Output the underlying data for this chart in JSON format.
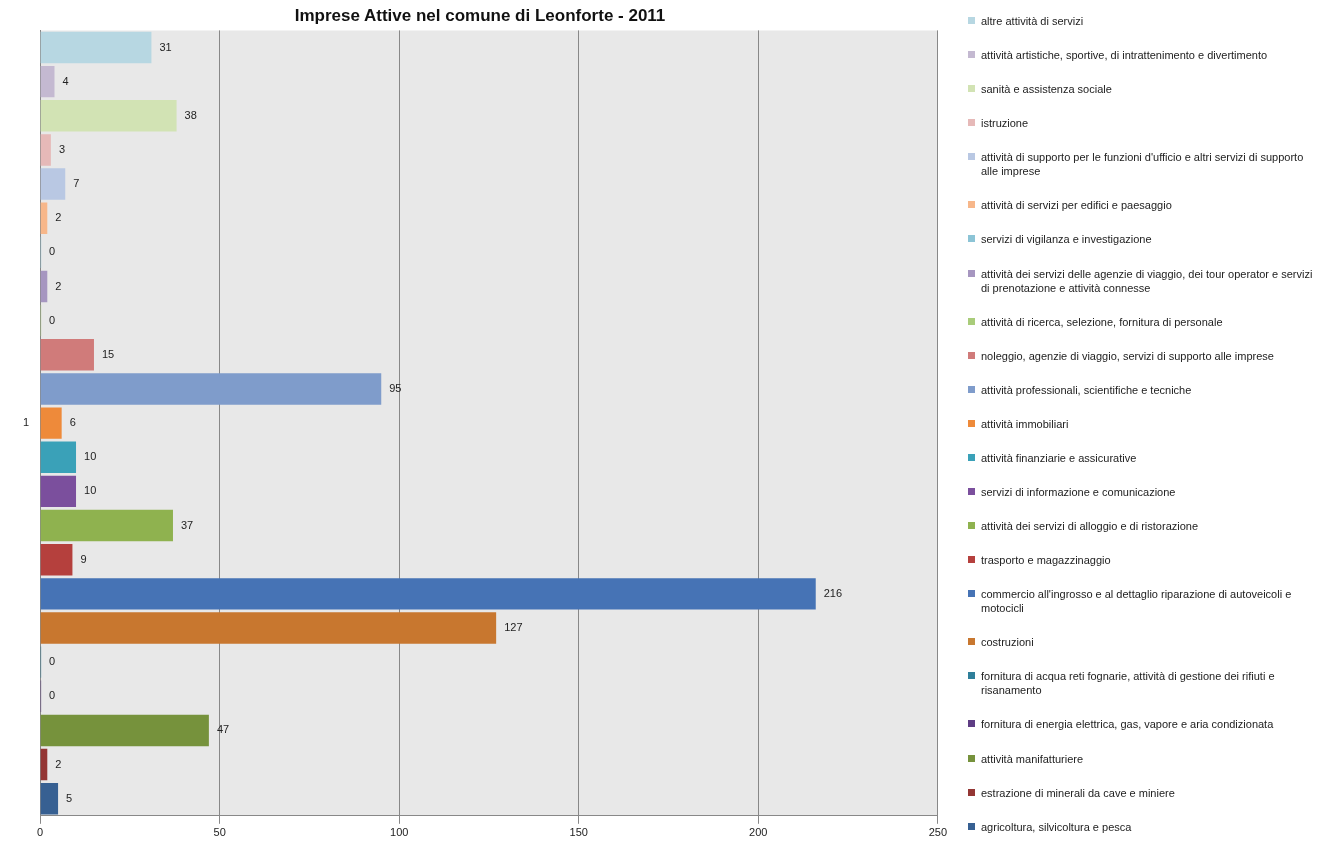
{
  "chart_data": {
    "type": "bar",
    "orientation": "horizontal",
    "title": "Imprese Attive nel comune di Leonforte - 2011",
    "categories": [
      "1"
    ],
    "xlim": [
      0,
      250
    ],
    "xticks": [
      0,
      50,
      100,
      150,
      200,
      250
    ],
    "grid": "x",
    "legend": "right",
    "data_labels": true,
    "series": [
      {
        "name": "altre attività di servizi",
        "color": "#b7d7e2",
        "values": [
          31
        ]
      },
      {
        "name": "attività artistiche, sportive, di intrattenimento e divertimento",
        "color": "#c4b9d1",
        "values": [
          4
        ]
      },
      {
        "name": "sanità e assistenza sociale",
        "color": "#d2e3b4",
        "values": [
          38
        ]
      },
      {
        "name": "istruzione",
        "color": "#e6b9b8",
        "values": [
          3
        ]
      },
      {
        "name": "attività di supporto per le funzioni d'ufficio e altri servizi di supporto alle imprese",
        "color": "#b9c8e3",
        "values": [
          7
        ]
      },
      {
        "name": "attività di servizi per edifici e paesaggio",
        "color": "#f7b78a",
        "values": [
          2
        ]
      },
      {
        "name": "servizi di vigilanza e investigazione",
        "color": "#8cc4d6",
        "values": [
          0
        ]
      },
      {
        "name": "attività dei servizi delle agenzie di viaggio, dei tour operator e servizi di prenotazione e attività connesse",
        "color": "#a696c0",
        "values": [
          2
        ]
      },
      {
        "name": "attività di ricerca, selezione, fornitura di personale",
        "color": "#a9cc7a",
        "values": [
          0
        ]
      },
      {
        "name": "noleggio, agenzie di viaggio, servizi di supporto alle imprese",
        "color": "#d07b7a",
        "values": [
          15
        ]
      },
      {
        "name": "attività professionali, scientifiche e tecniche",
        "color": "#7f9ccb",
        "values": [
          95
        ]
      },
      {
        "name": "attività immobiliari",
        "color": "#ee8a3a",
        "values": [
          6
        ]
      },
      {
        "name": "attività finanziarie e assicurative",
        "color": "#3aa1b8",
        "values": [
          10
        ]
      },
      {
        "name": "servizi di informazione e comunicazione",
        "color": "#7b4f9d",
        "values": [
          10
        ]
      },
      {
        "name": "attività dei servizi di alloggio e di ristorazione",
        "color": "#8fb24f",
        "values": [
          37
        ]
      },
      {
        "name": "trasporto e magazzinaggio",
        "color": "#b5403d",
        "values": [
          9
        ]
      },
      {
        "name": "commercio all'ingrosso e al dettaglio riparazione di autoveicoli e motocicli",
        "color": "#4673b5",
        "values": [
          216
        ]
      },
      {
        "name": "costruzioni",
        "color": "#c8772f",
        "values": [
          127
        ]
      },
      {
        "name": "fornitura di acqua reti fognarie, attività di gestione dei rifiuti e risanamento",
        "color": "#2f7f9a",
        "values": [
          0
        ]
      },
      {
        "name": "fornitura di energia elettrica, gas, vapore e aria condizionata",
        "color": "#5e3d84",
        "values": [
          0
        ]
      },
      {
        "name": "attività manifatturiere",
        "color": "#76923c",
        "values": [
          47
        ]
      },
      {
        "name": "estrazione di minerali da cave e miniere",
        "color": "#943634",
        "values": [
          2
        ]
      },
      {
        "name": "agricoltura, silvicoltura e pesca",
        "color": "#376092",
        "values": [
          5
        ]
      }
    ]
  }
}
